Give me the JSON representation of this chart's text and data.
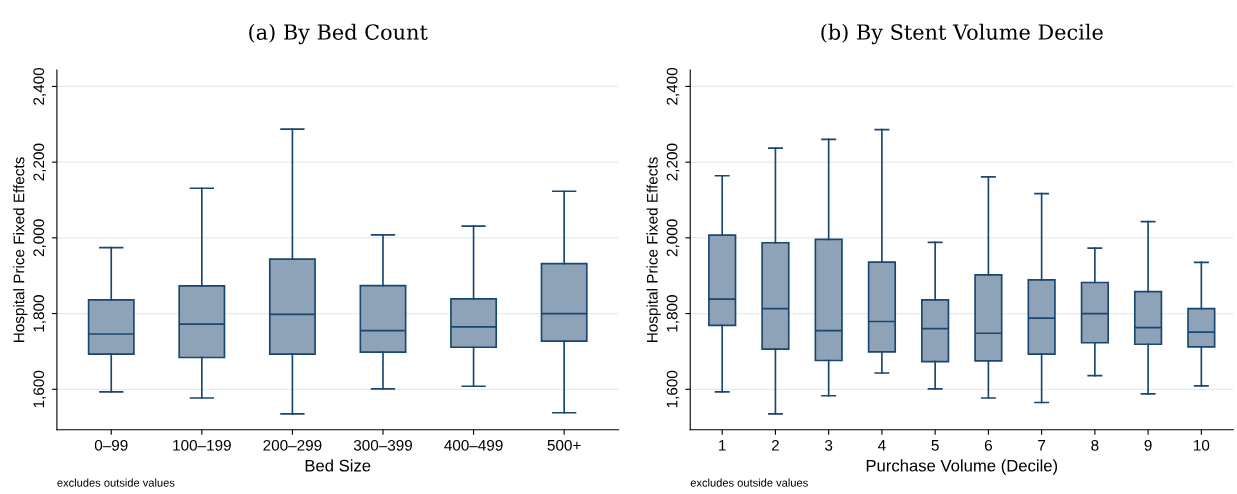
{
  "chart_data": [
    {
      "type": "box",
      "title": "(a) By Bed Count",
      "xlabel": "Bed Size",
      "ylabel": "Hospital Price Fixed Effects",
      "categories": [
        "0–99",
        "100–199",
        "200–299",
        "300–399",
        "400–499",
        "500+"
      ],
      "color": "#8fa3b8",
      "ylim": [
        1493,
        2443
      ],
      "yticks": [
        {
          "value": 1600,
          "label": "1,600"
        },
        {
          "value": 1800,
          "label": "1,800"
        },
        {
          "value": 2000,
          "label": "2,000"
        },
        {
          "value": 2200,
          "label": "2,200"
        },
        {
          "value": 2400,
          "label": "2,400"
        }
      ],
      "grid": "y",
      "annotations": [
        "excludes outside values"
      ],
      "boxes": [
        {
          "low": 1593,
          "q1": 1693,
          "median": 1746,
          "q3": 1836,
          "high": 1974
        },
        {
          "low": 1577,
          "q1": 1684,
          "median": 1772,
          "q3": 1873,
          "high": 2131
        },
        {
          "low": 1535,
          "q1": 1693,
          "median": 1798,
          "q3": 1944,
          "high": 2287
        },
        {
          "low": 1601,
          "q1": 1698,
          "median": 1755,
          "q3": 1874,
          "high": 2008
        },
        {
          "low": 1608,
          "q1": 1711,
          "median": 1765,
          "q3": 1839,
          "high": 2031
        },
        {
          "low": 1538,
          "q1": 1727,
          "median": 1800,
          "q3": 1932,
          "high": 2123
        }
      ]
    },
    {
      "type": "box",
      "title": "(b) By Stent Volume Decile",
      "xlabel": "Purchase Volume (Decile)",
      "ylabel": "Hospital Price Fixed Effects",
      "categories": [
        "1",
        "2",
        "3",
        "4",
        "5",
        "6",
        "7",
        "8",
        "9",
        "10"
      ],
      "color": "#8fa3b8",
      "ylim": [
        1493,
        2443
      ],
      "yticks": [
        {
          "value": 1600,
          "label": "1,600"
        },
        {
          "value": 1800,
          "label": "1,800"
        },
        {
          "value": 2000,
          "label": "2,000"
        },
        {
          "value": 2200,
          "label": "2,200"
        },
        {
          "value": 2400,
          "label": "2,400"
        }
      ],
      "grid": "y",
      "annotations": [
        "excludes outside values"
      ],
      "boxes": [
        {
          "low": 1593,
          "q1": 1769,
          "median": 1838,
          "q3": 2007,
          "high": 2164
        },
        {
          "low": 1535,
          "q1": 1706,
          "median": 1813,
          "q3": 1987,
          "high": 2237
        },
        {
          "low": 1583,
          "q1": 1676,
          "median": 1755,
          "q3": 1996,
          "high": 2260
        },
        {
          "low": 1643,
          "q1": 1699,
          "median": 1779,
          "q3": 1936,
          "high": 2286
        },
        {
          "low": 1601,
          "q1": 1673,
          "median": 1760,
          "q3": 1836,
          "high": 1988
        },
        {
          "low": 1577,
          "q1": 1675,
          "median": 1748,
          "q3": 1902,
          "high": 2161
        },
        {
          "low": 1565,
          "q1": 1693,
          "median": 1788,
          "q3": 1889,
          "high": 2117
        },
        {
          "low": 1636,
          "q1": 1723,
          "median": 1800,
          "q3": 1882,
          "high": 1973
        },
        {
          "low": 1588,
          "q1": 1719,
          "median": 1763,
          "q3": 1858,
          "high": 2043
        },
        {
          "low": 1609,
          "q1": 1712,
          "median": 1751,
          "q3": 1813,
          "high": 1935
        }
      ]
    }
  ]
}
